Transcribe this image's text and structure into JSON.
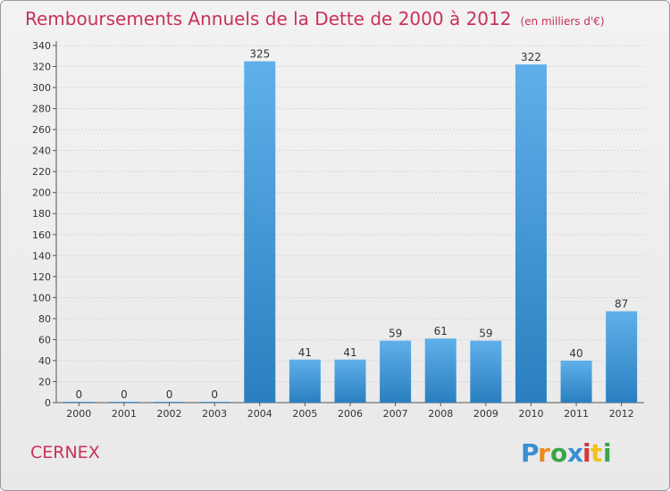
{
  "page": {
    "title": "Remboursements Annuels de la Dette de 2000 à 2012",
    "subtitle": "(en milliers d'€)",
    "commune": "CERNEX",
    "logo_text": "Proxiti"
  },
  "colors": {
    "accent": "#c8325a",
    "bar_light": "#5fb0ea",
    "bar_dark": "#2a7fc0"
  },
  "chart_data": {
    "type": "bar",
    "title": "Remboursements Annuels de la Dette de 2000 à 2012",
    "subtitle": "(en milliers d'€)",
    "xlabel": "",
    "ylabel": "",
    "categories": [
      "2000",
      "2001",
      "2002",
      "2003",
      "2004",
      "2005",
      "2006",
      "2007",
      "2008",
      "2009",
      "2010",
      "2011",
      "2012"
    ],
    "values": [
      0,
      0,
      0,
      0,
      325,
      41,
      41,
      59,
      61,
      59,
      322,
      40,
      87
    ],
    "ylim": [
      0,
      340
    ],
    "yticks": [
      0,
      20,
      40,
      60,
      80,
      100,
      120,
      140,
      160,
      180,
      200,
      220,
      240,
      260,
      280,
      300,
      320,
      340
    ],
    "grid": true,
    "legend": "none"
  }
}
